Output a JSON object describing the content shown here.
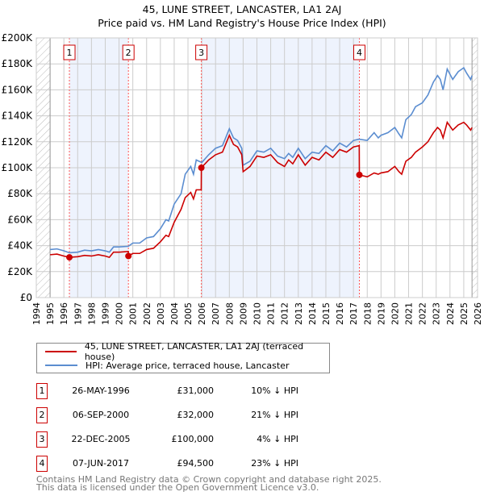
{
  "chart_data": {
    "type": "line",
    "title": "45, LUNE STREET, LANCASTER, LA1 2AJ",
    "subtitle": "Price paid vs. HM Land Registry's House Price Index (HPI)",
    "xlim": [
      1994,
      2026
    ],
    "ylim": [
      0,
      200000
    ],
    "x_ticks": [
      "1994",
      "1995",
      "1996",
      "1997",
      "1998",
      "1999",
      "2000",
      "2001",
      "2002",
      "2003",
      "2004",
      "2005",
      "2006",
      "2007",
      "2008",
      "2009",
      "2010",
      "2011",
      "2012",
      "2013",
      "2014",
      "2015",
      "2016",
      "2017",
      "2018",
      "2019",
      "2020",
      "2021",
      "2022",
      "2023",
      "2024",
      "2025",
      "2026"
    ],
    "y_ticks": [
      {
        "v": 0,
        "label": "£0"
      },
      {
        "v": 20000,
        "label": "£20K"
      },
      {
        "v": 40000,
        "label": "£40K"
      },
      {
        "v": 60000,
        "label": "£60K"
      },
      {
        "v": 80000,
        "label": "£80K"
      },
      {
        "v": 100000,
        "label": "£100K"
      },
      {
        "v": 120000,
        "label": "£120K"
      },
      {
        "v": 140000,
        "label": "£140K"
      },
      {
        "v": 160000,
        "label": "£160K"
      },
      {
        "v": 180000,
        "label": "£180K"
      },
      {
        "v": 200000,
        "label": "£200K"
      }
    ],
    "grid": true,
    "hatched_ranges": [
      [
        1994,
        1995
      ],
      [
        2025.6,
        2026
      ]
    ],
    "shaded_ranges": [
      [
        1996.4,
        2000.68
      ],
      [
        2005.97,
        2017.43
      ]
    ],
    "series": [
      {
        "name": "45, LUNE STREET, LANCASTER, LA1 2AJ (terraced house)",
        "color": "#cc0000",
        "x": [
          1995,
          1995.5,
          1996,
          1996.4,
          1997,
          1997.5,
          1998,
          1998.5,
          1999,
          1999.3,
          1999.6,
          2000,
          2000.67,
          2000.68,
          2001,
          2001.5,
          2002,
          2002.5,
          2003,
          2003.4,
          2003.6,
          2004,
          2004.5,
          2004.8,
          2005.2,
          2005.4,
          2005.6,
          2005.96,
          2005.97,
          2006.5,
          2007,
          2007.5,
          2008,
          2008.3,
          2008.6,
          2008.9,
          2009,
          2009.5,
          2010,
          2010.5,
          2011,
          2011.5,
          2012,
          2012.3,
          2012.6,
          2013,
          2013.5,
          2014,
          2014.5,
          2015,
          2015.5,
          2016,
          2016.5,
          2017,
          2017.42,
          2017.43,
          2018,
          2018.5,
          2018.8,
          2019,
          2019.5,
          2020,
          2020.3,
          2020.5,
          2020.8,
          2021.2,
          2021.5,
          2022,
          2022.4,
          2022.8,
          2023.1,
          2023.3,
          2023.5,
          2023.8,
          2024.2,
          2024.6,
          2025,
          2025.2,
          2025.5,
          2025.6
        ],
        "y": [
          33000,
          33500,
          32000,
          31000,
          31500,
          32500,
          32000,
          33000,
          32000,
          31000,
          35000,
          35000,
          35500,
          32000,
          34000,
          34000,
          37000,
          38000,
          43000,
          48000,
          47000,
          58000,
          68000,
          77000,
          81000,
          76000,
          83000,
          83000,
          100000,
          106000,
          110000,
          112000,
          125000,
          118000,
          116000,
          110000,
          97000,
          101000,
          109000,
          108000,
          110000,
          104000,
          101000,
          106000,
          103000,
          110000,
          102000,
          108000,
          106000,
          112000,
          108000,
          114000,
          112000,
          116000,
          117000,
          94500,
          93000,
          96000,
          95000,
          96000,
          97000,
          101000,
          97000,
          95000,
          105000,
          108000,
          112000,
          116000,
          120000,
          127000,
          131000,
          129000,
          123000,
          135000,
          129000,
          133000,
          135000,
          133000,
          129000,
          131000
        ]
      },
      {
        "name": "HPI: Average price, terraced house, Lancaster",
        "color": "#5b8dd0",
        "x": [
          1995,
          1995.5,
          1996,
          1996.4,
          1997,
          1997.5,
          1998,
          1998.5,
          1999,
          1999.3,
          1999.6,
          2000,
          2000.68,
          2001,
          2001.5,
          2002,
          2002.5,
          2003,
          2003.4,
          2003.6,
          2004,
          2004.5,
          2004.8,
          2005.2,
          2005.4,
          2005.6,
          2006,
          2006.5,
          2007,
          2007.5,
          2008,
          2008.3,
          2008.6,
          2008.9,
          2009,
          2009.5,
          2010,
          2010.5,
          2011,
          2011.5,
          2012,
          2012.3,
          2012.6,
          2013,
          2013.5,
          2014,
          2014.5,
          2015,
          2015.5,
          2016,
          2016.5,
          2017,
          2017.4,
          2018,
          2018.5,
          2018.8,
          2019,
          2019.5,
          2020,
          2020.3,
          2020.5,
          2020.8,
          2021.2,
          2021.5,
          2022,
          2022.4,
          2022.8,
          2023.1,
          2023.3,
          2023.5,
          2023.8,
          2024.2,
          2024.6,
          2025,
          2025.2,
          2025.5,
          2025.6
        ],
        "y": [
          37000,
          37500,
          36000,
          34500,
          35000,
          36500,
          36000,
          37000,
          36000,
          35000,
          39000,
          39000,
          39500,
          42000,
          42000,
          46000,
          47000,
          53000,
          60000,
          59000,
          72000,
          80000,
          95000,
          101000,
          95000,
          106000,
          104000,
          110000,
          115000,
          117000,
          130000,
          123000,
          121000,
          115000,
          102000,
          105000,
          113000,
          112000,
          115000,
          109000,
          107000,
          111000,
          108000,
          115000,
          107000,
          112000,
          111000,
          117000,
          113000,
          119000,
          116000,
          121000,
          122000,
          121000,
          127000,
          123000,
          125000,
          127000,
          131000,
          126000,
          123000,
          137000,
          141000,
          147000,
          150000,
          156000,
          166000,
          171000,
          168000,
          160000,
          176000,
          168000,
          174000,
          177000,
          173000,
          168000,
          171000
        ]
      }
    ],
    "sales": [
      {
        "n": "1",
        "x": 1996.4,
        "y": 31000,
        "date": "26-MAY-1996",
        "price": "£31,000",
        "hpi": "10% ↓ HPI"
      },
      {
        "n": "2",
        "x": 2000.68,
        "y": 32000,
        "date": "06-SEP-2000",
        "price": "£32,000",
        "hpi": "21% ↓ HPI"
      },
      {
        "n": "3",
        "x": 2005.97,
        "y": 100000,
        "date": "22-DEC-2005",
        "price": "£100,000",
        "hpi": "4% ↓ HPI"
      },
      {
        "n": "4",
        "x": 2017.43,
        "y": 94500,
        "date": "07-JUN-2017",
        "price": "£94,500",
        "hpi": "23% ↓ HPI"
      }
    ],
    "legend_placement": "below"
  },
  "footer": {
    "line1": "Contains HM Land Registry data © Crown copyright and database right 2025.",
    "line2": "This data is licensed under the Open Government Licence v3.0."
  }
}
